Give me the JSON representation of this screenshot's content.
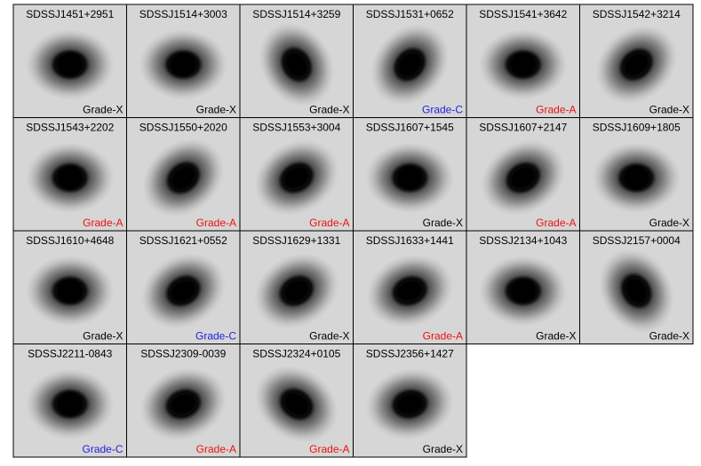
{
  "panels": [
    {
      "name": "SDSSJ1451+2951",
      "grade": "Grade-X",
      "grade_color": "#000000"
    },
    {
      "name": "SDSSJ1514+3003",
      "grade": "Grade-X",
      "grade_color": "#000000"
    },
    {
      "name": "SDSSJ1514+3259",
      "grade": "Grade-X",
      "grade_color": "#000000"
    },
    {
      "name": "SDSSJ1531+0652",
      "grade": "Grade-C",
      "grade_color": "#2222dd"
    },
    {
      "name": "SDSSJ1541+3642",
      "grade": "Grade-A",
      "grade_color": "#ee1111"
    },
    {
      "name": "SDSSJ1542+3214",
      "grade": "Grade-X",
      "grade_color": "#000000"
    },
    {
      "name": "SDSSJ1543+2202",
      "grade": "Grade-A",
      "grade_color": "#ee1111"
    },
    {
      "name": "SDSSJ1550+2020",
      "grade": "Grade-A",
      "grade_color": "#ee1111"
    },
    {
      "name": "SDSSJ1553+3004",
      "grade": "Grade-A",
      "grade_color": "#ee1111"
    },
    {
      "name": "SDSSJ1607+1545",
      "grade": "Grade-X",
      "grade_color": "#000000"
    },
    {
      "name": "SDSSJ1607+2147",
      "grade": "Grade-A",
      "grade_color": "#ee1111"
    },
    {
      "name": "SDSSJ1609+1805",
      "grade": "Grade-X",
      "grade_color": "#000000"
    },
    {
      "name": "SDSSJ1610+4648",
      "grade": "Grade-X",
      "grade_color": "#000000"
    },
    {
      "name": "SDSSJ1621+0552",
      "grade": "Grade-C",
      "grade_color": "#2222dd"
    },
    {
      "name": "SDSSJ1629+1331",
      "grade": "Grade-X",
      "grade_color": "#000000"
    },
    {
      "name": "SDSSJ1633+1441",
      "grade": "Grade-A",
      "grade_color": "#ee1111"
    },
    {
      "name": "SDSSJ2134+1043",
      "grade": "Grade-X",
      "grade_color": "#000000"
    },
    {
      "name": "SDSSJ2157+0004",
      "grade": "Grade-X",
      "grade_color": "#000000"
    },
    {
      "name": "SDSSJ2211-0843",
      "grade": "Grade-C",
      "grade_color": "#2222dd"
    },
    {
      "name": "SDSSJ2309-0039",
      "grade": "Grade-A",
      "grade_color": "#ee1111"
    },
    {
      "name": "SDSSJ2324+0105",
      "grade": "Grade-A",
      "grade_color": "#ee1111"
    },
    {
      "name": "SDSSJ2356+1427",
      "grade": "Grade-X",
      "grade_color": "#000000"
    }
  ]
}
